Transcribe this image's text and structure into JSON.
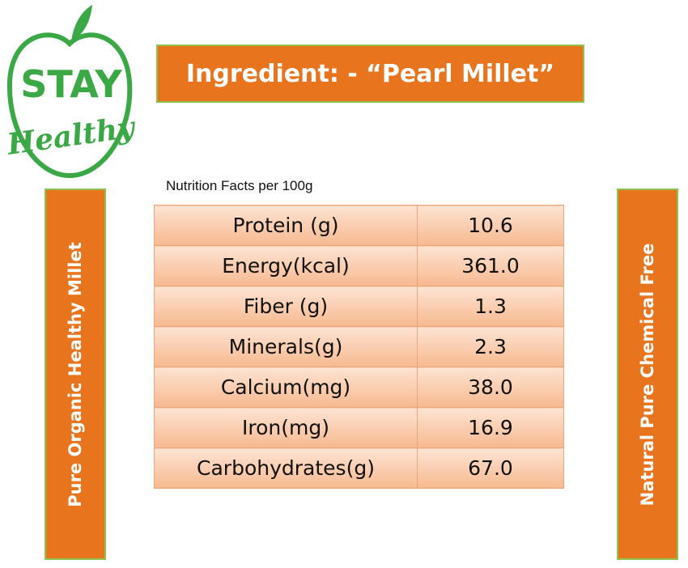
{
  "logo": {
    "line1": "STAY",
    "line2": "Healthy"
  },
  "title": "Ingredient: - “Pearl Millet”",
  "subtitle": "Nutrition Facts per 100g",
  "table": {
    "rows": [
      [
        "Protein (g)",
        "10.6"
      ],
      [
        "Energy(kcal)",
        "361.0"
      ],
      [
        "Fiber (g)",
        "1.3"
      ],
      [
        "Minerals(g)",
        "2.3"
      ],
      [
        "Calcium(mg)",
        "38.0"
      ],
      [
        "Iron(mg)",
        "16.9"
      ],
      [
        "Carbohydrates(g)",
        "67.0"
      ]
    ]
  },
  "left_banner": "Pure Organic Healthy Millet",
  "right_banner": "Natural Pure Chemical Free"
}
